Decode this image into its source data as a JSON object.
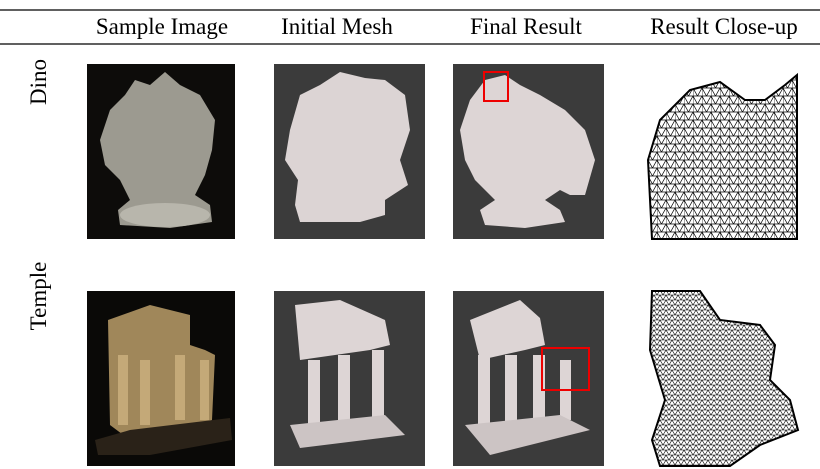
{
  "header": {
    "columns": [
      "Sample Image",
      "Initial Mesh",
      "Final Result",
      "Result Close-up"
    ]
  },
  "rows": [
    {
      "label": "Dino"
    },
    {
      "label": "Temple"
    }
  ]
}
